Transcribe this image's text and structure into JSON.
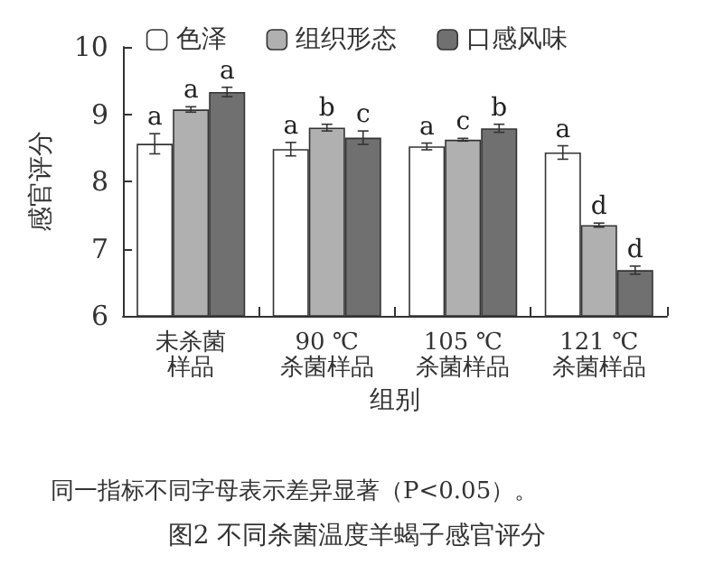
{
  "chart_data": {
    "type": "bar",
    "title": "图2 不同杀菌温度羊蝎子感官评分",
    "xlabel": "组别",
    "ylabel": "感官评分",
    "annotations": [
      "同一指标不同字母表示差异显著（P<0.05）。"
    ],
    "categories": [
      "未杀菌样品",
      "90 ℃\n杀菌样品",
      "105 ℃\n杀菌样品",
      "121 ℃\n杀菌样品"
    ],
    "series": [
      {
        "name": "色泽",
        "color": "#ffffff",
        "values": [
          8.56,
          8.48,
          8.52,
          8.43
        ],
        "errors": [
          0.15,
          0.1,
          0.05,
          0.1
        ],
        "value_labels": [
          "a",
          "a",
          "a",
          "a"
        ]
      },
      {
        "name": "组织形态",
        "color": "#b0b0b0",
        "values": [
          9.07,
          8.8,
          8.62,
          7.35
        ],
        "errors": [
          0.04,
          0.05,
          0.02,
          0.03
        ],
        "value_labels": [
          "a",
          "b",
          "c",
          "d"
        ]
      },
      {
        "name": "口感风味",
        "color": "#707070",
        "values": [
          9.33,
          8.65,
          8.79,
          6.68
        ],
        "errors": [
          0.07,
          0.1,
          0.06,
          0.06
        ],
        "value_labels": [
          "a",
          "c",
          "b",
          "d"
        ]
      }
    ],
    "ylim": [
      6,
      10
    ],
    "yticks": [
      6,
      7,
      8,
      9,
      10
    ],
    "grid": false,
    "legend": "top"
  }
}
